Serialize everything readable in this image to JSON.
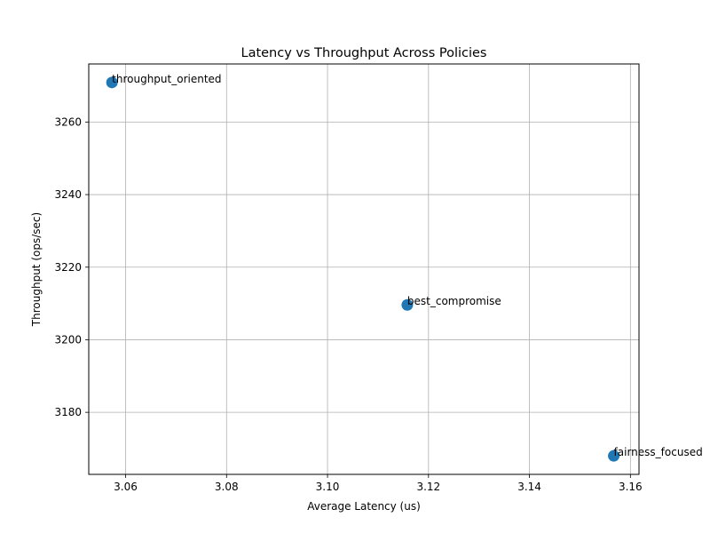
{
  "chart_data": {
    "type": "scatter",
    "title": "Latency vs Throughput Across Policies",
    "xlabel": "Average Latency (us)",
    "ylabel": "Throughput (ops/sec)",
    "xlim": [
      3.0527,
      3.1617
    ],
    "ylim": [
      3162.9,
      3276.0
    ],
    "xticks": [
      3.06,
      3.08,
      3.1,
      3.12,
      3.14,
      3.16
    ],
    "xtick_labels": [
      "3.06",
      "3.08",
      "3.10",
      "3.12",
      "3.14",
      "3.16"
    ],
    "yticks": [
      3180,
      3200,
      3220,
      3240,
      3260
    ],
    "ytick_labels": [
      "3180",
      "3200",
      "3220",
      "3240",
      "3260"
    ],
    "grid": true,
    "marker_color": "#1f77b4",
    "points": [
      {
        "label": "throughput_oriented",
        "x": 3.0573,
        "y": 3270.9
      },
      {
        "label": "best_compromise",
        "x": 3.1158,
        "y": 3209.6
      },
      {
        "label": "fairness_focused",
        "x": 3.1567,
        "y": 3168.0
      }
    ]
  }
}
